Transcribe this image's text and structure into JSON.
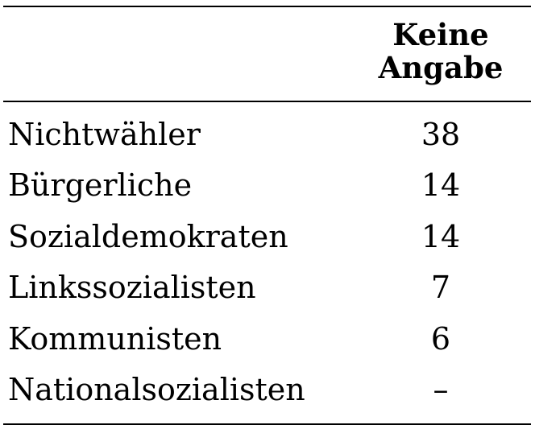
{
  "table": {
    "header": {
      "column": [
        "Keine",
        "Angabe"
      ]
    },
    "rows": [
      {
        "label": "Nichtwähler",
        "value": "38"
      },
      {
        "label": "Bürgerliche",
        "value": "14"
      },
      {
        "label": "Sozialdemokraten",
        "value": "14"
      },
      {
        "label": "Linkssozialisten",
        "value": "7"
      },
      {
        "label": "Kommunisten",
        "value": "6"
      },
      {
        "label": "Nationalsozialisten",
        "value": "–"
      }
    ]
  }
}
